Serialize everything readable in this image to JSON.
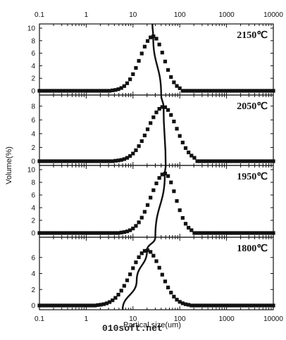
{
  "chart_data": {
    "type": "scatter",
    "xscale": "log",
    "xlim": [
      0.1,
      10000
    ],
    "x_tick_labels": [
      "0.1",
      "1",
      "10",
      "100",
      "1000",
      "10000"
    ],
    "xlabel": "Partical size(um)",
    "ylabel": "Volume(%)",
    "panels": [
      {
        "label": "2150℃",
        "ylim": [
          0,
          10
        ],
        "y_tick_labels": [
          "0",
          "2",
          "4",
          "6",
          "8",
          "10"
        ],
        "peak": 8.7,
        "peak_x": 27,
        "sigma_left": 0.28,
        "sigma_right": 0.23,
        "cutoff": 100
      },
      {
        "label": "2050℃",
        "ylim": [
          0,
          9
        ],
        "y_tick_labels": [
          "0",
          "2",
          "4",
          "6",
          "8"
        ],
        "peak": 7.9,
        "peak_x": 45,
        "sigma_left": 0.33,
        "sigma_right": 0.28,
        "cutoff": 220
      },
      {
        "label": "1950℃",
        "ylim": [
          0,
          10
        ],
        "y_tick_labels": [
          "0",
          "2",
          "4",
          "6",
          "8",
          "10"
        ],
        "peak": 9.4,
        "peak_x": 48,
        "sigma_left": 0.3,
        "sigma_right": 0.23,
        "cutoff": 180
      },
      {
        "label": "1800℃",
        "ylim": [
          0,
          8
        ],
        "y_tick_labels": [
          "0",
          "2",
          "4",
          "6"
        ],
        "peak": 6.9,
        "peak_x": 20,
        "sigma_left": 0.34,
        "sigma_right": 0.3,
        "cutoff": 280
      }
    ],
    "trend_line": {
      "x": [
        6,
        12,
        20,
        30,
        45,
        50,
        33
      ],
      "description": "curve through the peaks"
    }
  },
  "watermark": "010soft.net"
}
